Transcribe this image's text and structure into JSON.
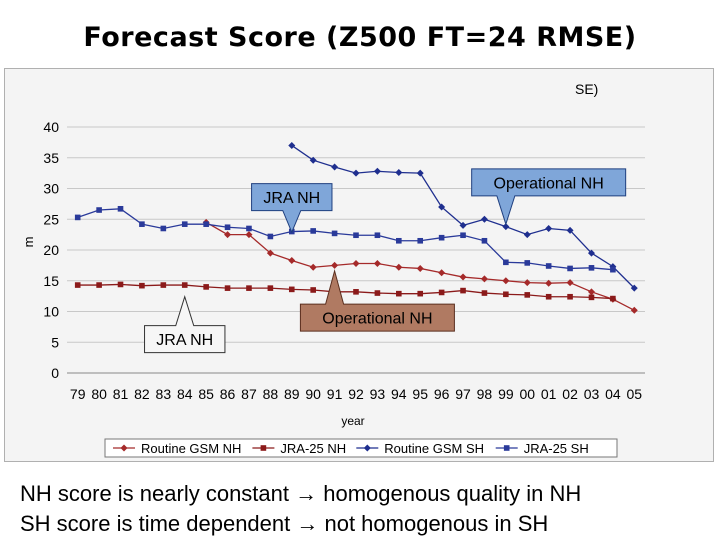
{
  "slide": {
    "title": "Forecast Score (Z500 FT=24 RMSE)",
    "captions": [
      "NH score is nearly constant → homogenous quality in NH",
      "SH score is time dependent → not homogenous in SH"
    ]
  },
  "chart_data": {
    "type": "line",
    "corner_label": "SE)",
    "xlabel": "year",
    "ylabel": "m",
    "ylim": [
      0,
      40
    ],
    "yticks": [
      0,
      5,
      10,
      15,
      20,
      25,
      30,
      35,
      40
    ],
    "categories": [
      "79",
      "80",
      "81",
      "82",
      "83",
      "84",
      "85",
      "86",
      "87",
      "88",
      "89",
      "90",
      "91",
      "92",
      "93",
      "94",
      "95",
      "96",
      "97",
      "98",
      "99",
      "00",
      "01",
      "02",
      "03",
      "04",
      "05"
    ],
    "grid": "horizontal",
    "legend_position": "bottom",
    "series": [
      {
        "name": "Routine GSM NH",
        "color": "#a52a2a",
        "marker": "diamond",
        "values": [
          null,
          null,
          null,
          null,
          null,
          null,
          24.5,
          22.5,
          22.5,
          19.5,
          18.3,
          17.2,
          17.5,
          17.8,
          17.8,
          17.2,
          17.0,
          16.3,
          15.6,
          15.3,
          15.0,
          14.7,
          14.6,
          14.7,
          13.2,
          12.0,
          10.2
        ]
      },
      {
        "name": "JRA-25 NH",
        "color": "#8b1a1a",
        "marker": "square",
        "values": [
          14.3,
          14.3,
          14.4,
          14.2,
          14.3,
          14.3,
          14.0,
          13.8,
          13.8,
          13.8,
          13.6,
          13.5,
          13.2,
          13.2,
          13.0,
          12.9,
          12.9,
          13.1,
          13.4,
          13.0,
          12.8,
          12.7,
          12.4,
          12.4,
          12.3,
          12.1,
          null
        ]
      },
      {
        "name": "Routine GSM SH",
        "color": "#1f2f8f",
        "marker": "diamond",
        "values": [
          null,
          null,
          null,
          null,
          null,
          null,
          null,
          null,
          null,
          null,
          37.0,
          34.6,
          33.5,
          32.5,
          32.8,
          32.6,
          32.5,
          27.0,
          24.0,
          25.0,
          23.8,
          22.5,
          23.5,
          23.2,
          19.5,
          17.3,
          13.8
        ]
      },
      {
        "name": "JRA-25 SH",
        "color": "#2a3a9a",
        "marker": "square",
        "values": [
          25.3,
          26.5,
          26.7,
          24.2,
          23.5,
          24.2,
          24.2,
          23.7,
          23.5,
          22.2,
          23.0,
          23.1,
          22.7,
          22.4,
          22.4,
          21.5,
          21.5,
          22.0,
          22.4,
          21.5,
          18.0,
          17.9,
          17.4,
          17.0,
          17.1,
          16.8,
          null
        ]
      }
    ],
    "annotations": [
      {
        "text": "JRA  NH",
        "style": "white-callout",
        "x_category": "84",
        "y": 5.5,
        "target_category": "84",
        "target_y": 12.4
      },
      {
        "text": "JRA  NH",
        "style": "blue-callout",
        "x_category": "89",
        "y": 28.6,
        "target_category": "89",
        "target_y": 22.9
      },
      {
        "text": "Operational  NH",
        "style": "brown-callout",
        "x_category": "93",
        "y": 9.0,
        "target_category": "91",
        "target_y": 16.6
      },
      {
        "text": "Operational  NH",
        "style": "blue-callout",
        "x_category": "01",
        "y": 31.0,
        "target_category": "99",
        "target_y": 24.2
      }
    ]
  }
}
